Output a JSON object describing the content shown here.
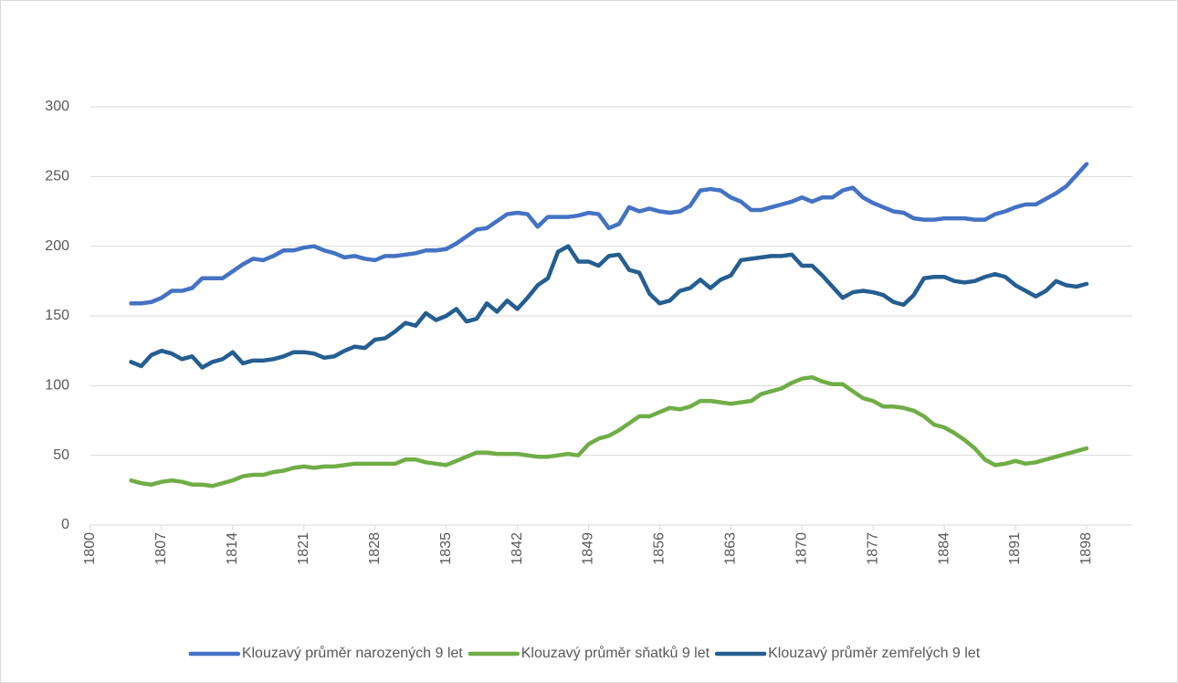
{
  "chart_data": {
    "type": "line",
    "x": [
      1804,
      1805,
      1806,
      1807,
      1808,
      1809,
      1810,
      1811,
      1812,
      1813,
      1814,
      1815,
      1816,
      1817,
      1818,
      1819,
      1820,
      1821,
      1822,
      1823,
      1824,
      1825,
      1826,
      1827,
      1828,
      1829,
      1830,
      1831,
      1832,
      1833,
      1834,
      1835,
      1836,
      1837,
      1838,
      1839,
      1840,
      1841,
      1842,
      1843,
      1844,
      1845,
      1846,
      1847,
      1848,
      1849,
      1850,
      1851,
      1852,
      1853,
      1854,
      1855,
      1856,
      1857,
      1858,
      1859,
      1860,
      1861,
      1862,
      1863,
      1864,
      1865,
      1866,
      1867,
      1868,
      1869,
      1870,
      1871,
      1872,
      1873,
      1874,
      1875,
      1876,
      1877,
      1878,
      1879,
      1880,
      1881,
      1882,
      1883,
      1884,
      1885,
      1886,
      1887,
      1888,
      1889,
      1890,
      1891,
      1892,
      1893,
      1894,
      1895,
      1896,
      1897,
      1898
    ],
    "series": [
      {
        "name": "Klouzavý průměr narozených 9 let",
        "color": "#4472c4",
        "values": [
          159,
          159,
          160,
          163,
          168,
          168,
          170,
          177,
          177,
          177,
          182,
          187,
          191,
          190,
          193,
          197,
          197,
          199,
          200,
          197,
          195,
          192,
          193,
          191,
          190,
          193,
          193,
          194,
          195,
          197,
          197,
          198,
          202,
          207,
          212,
          213,
          218,
          223,
          224,
          223,
          214,
          221,
          221,
          221,
          222,
          224,
          223,
          213,
          216,
          228,
          225,
          227,
          225,
          224,
          225,
          229,
          240,
          241,
          240,
          235,
          232,
          226,
          226,
          228,
          230,
          232,
          235,
          232,
          235,
          235,
          240,
          242,
          235,
          231,
          228,
          225,
          224,
          220,
          219,
          219,
          220,
          220,
          220,
          219,
          219,
          223,
          225,
          228,
          230,
          230,
          234,
          238,
          243,
          251,
          259
        ]
      },
      {
        "name": "Klouzavý průměr sňatků 9 let",
        "color": "#70ad47",
        "values": [
          32,
          30,
          29,
          31,
          32,
          31,
          29,
          29,
          28,
          30,
          32,
          35,
          36,
          36,
          38,
          39,
          41,
          42,
          41,
          42,
          42,
          43,
          44,
          44,
          44,
          44,
          44,
          47,
          47,
          45,
          44,
          43,
          46,
          49,
          52,
          52,
          51,
          51,
          51,
          50,
          49,
          49,
          50,
          51,
          50,
          58,
          62,
          64,
          68,
          73,
          78,
          78,
          81,
          84,
          83,
          85,
          89,
          89,
          88,
          87,
          88,
          89,
          94,
          96,
          98,
          102,
          105,
          106,
          103,
          101,
          101,
          96,
          91,
          89,
          85,
          85,
          84,
          82,
          78,
          72,
          70,
          66,
          61,
          55,
          47,
          43,
          44,
          46,
          44,
          45,
          47,
          49,
          51,
          53,
          55
        ]
      },
      {
        "name": "Klouzavý průměr zemřelých 9 let",
        "color": "#255e91",
        "values": [
          117,
          114,
          122,
          125,
          123,
          119,
          121,
          113,
          117,
          119,
          124,
          116,
          118,
          118,
          119,
          121,
          124,
          124,
          123,
          120,
          121,
          125,
          128,
          127,
          133,
          134,
          139,
          145,
          143,
          152,
          147,
          150,
          155,
          146,
          148,
          159,
          153,
          161,
          155,
          163,
          172,
          177,
          196,
          200,
          189,
          189,
          186,
          193,
          194,
          183,
          181,
          166,
          159,
          161,
          168,
          170,
          176,
          170,
          176,
          179,
          190,
          191,
          192,
          193,
          193,
          194,
          186,
          186,
          179,
          171,
          163,
          167,
          168,
          167,
          165,
          160,
          158,
          165,
          177,
          178,
          178,
          175,
          174,
          175,
          178,
          180,
          178,
          172,
          168,
          164,
          168,
          175,
          172,
          171,
          173
        ]
      }
    ],
    "xlim": [
      1800,
      1902.5
    ],
    "xticks": [
      1800,
      1807,
      1814,
      1821,
      1828,
      1835,
      1842,
      1849,
      1856,
      1863,
      1870,
      1877,
      1884,
      1891,
      1898
    ],
    "ylim": [
      0,
      300
    ],
    "yticks": [
      0,
      50,
      100,
      150,
      200,
      250,
      300
    ],
    "grid": true,
    "legend": "bottom"
  }
}
